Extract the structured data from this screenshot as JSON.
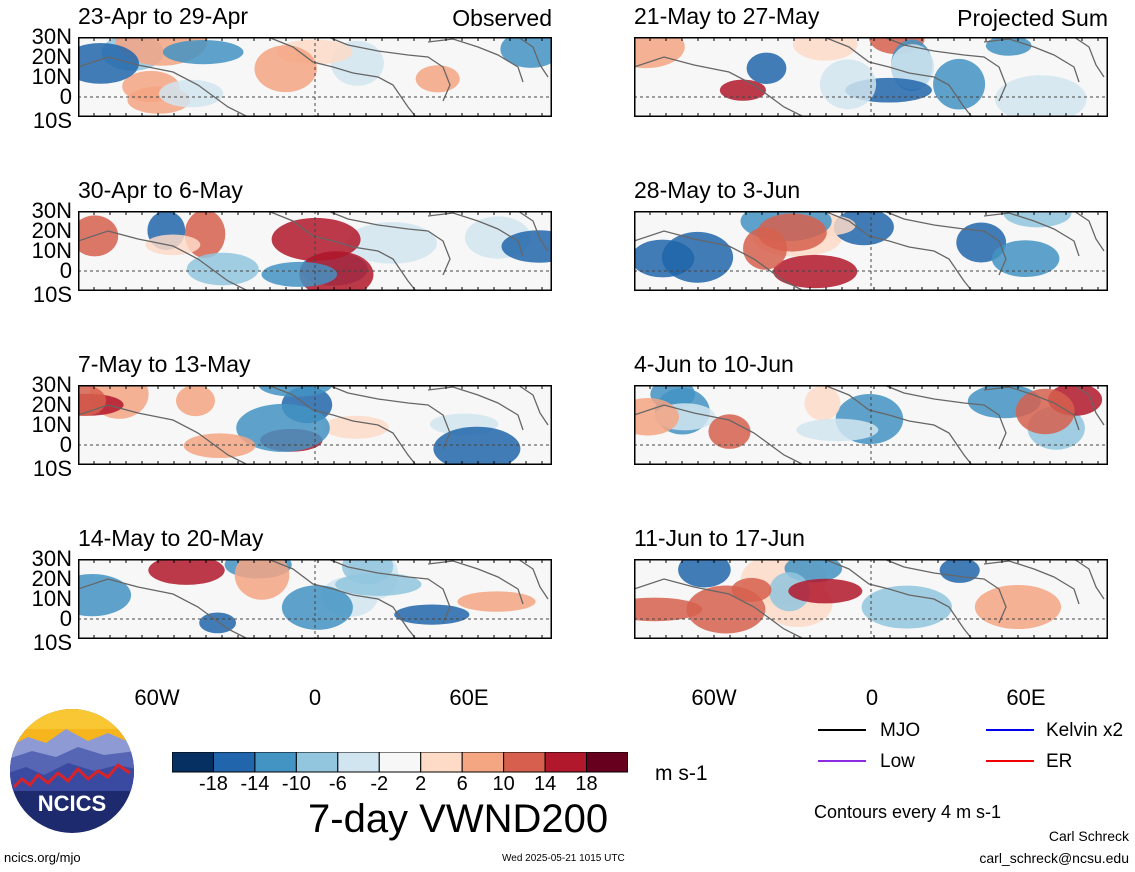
{
  "panels": [
    {
      "title": "23-Apr to 29-Apr",
      "tag": "Observed"
    },
    {
      "title": "21-May to 27-May",
      "tag": "Projected Sum"
    },
    {
      "title": "30-Apr to 6-May",
      "tag": ""
    },
    {
      "title": "28-May to 3-Jun",
      "tag": ""
    },
    {
      "title": "7-May to 13-May",
      "tag": ""
    },
    {
      "title": "4-Jun to 10-Jun",
      "tag": ""
    },
    {
      "title": "14-May to 20-May",
      "tag": ""
    },
    {
      "title": "11-Jun to 17-Jun",
      "tag": ""
    }
  ],
  "lat_labels": [
    "30N",
    "20N",
    "10N",
    "0",
    "10S"
  ],
  "lon_labels": [
    "60W",
    "0",
    "60E"
  ],
  "colorbar": {
    "labels": [
      "-18",
      "-14",
      "-10",
      "-6",
      "-2",
      "2",
      "6",
      "10",
      "14",
      "18"
    ],
    "colors": [
      "#053061",
      "#2166ac",
      "#4393c3",
      "#92c5de",
      "#d1e5f0",
      "#f7f7f7",
      "#fddbc7",
      "#f4a582",
      "#d6604d",
      "#b2182b",
      "#67001f"
    ],
    "unit": "m s-1"
  },
  "main_title": "7-day VWND200",
  "legend": {
    "items": [
      {
        "label": "MJO",
        "color": "#000000"
      },
      {
        "label": "Kelvin x2",
        "color": "#0000ee"
      },
      {
        "label": "Low",
        "color": "#8a2be2"
      },
      {
        "label": "ER",
        "color": "#ee0000"
      }
    ],
    "contours_note": "Contours every 4 m s-1"
  },
  "logo_text": "NCICS",
  "footer": {
    "url": "ncics.org/mjo",
    "timestamp": "Wed 2025-05-21 1015 UTC",
    "author": "Carl Schreck",
    "email": "carl_schreck@ncsu.edu"
  }
}
